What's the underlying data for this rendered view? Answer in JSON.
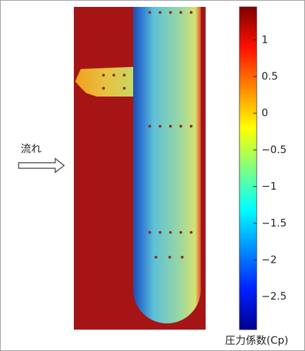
{
  "chart_data": {
    "type": "colorbar-image",
    "annotation": "流れ",
    "colorbar_label": "圧力係数(Cp)",
    "ylim": [
      -2.95,
      1.45
    ],
    "yticks": [
      1,
      0.5,
      0,
      {
        "value": -0.5,
        "label": "−0.5"
      },
      {
        "value": -1,
        "label": "−1"
      },
      {
        "value": -1.5,
        "label": "−1.5"
      },
      {
        "value": -2,
        "label": "−2"
      },
      {
        "value": -2.5,
        "label": "−2.5"
      }
    ]
  }
}
